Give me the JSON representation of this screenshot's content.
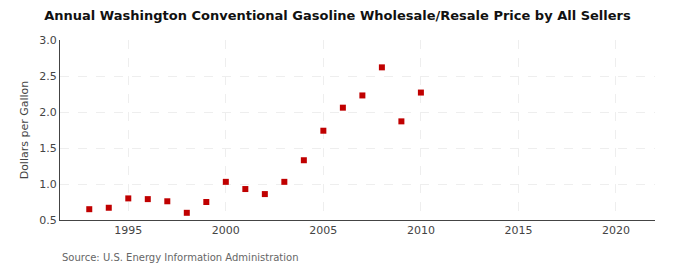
{
  "chart_data": {
    "type": "scatter",
    "title": "Annual Washington Conventional Gasoline Wholesale/Resale Price by All Sellers",
    "ylabel": "Dollars per Gallon",
    "annotations": [
      "Source: U.S. Energy Information Administration"
    ],
    "x": [
      1993,
      1994,
      1995,
      1996,
      1997,
      1998,
      1999,
      2000,
      2001,
      2002,
      2003,
      2004,
      2005,
      2006,
      2007,
      2008,
      2009,
      2010
    ],
    "values": [
      0.65,
      0.67,
      0.8,
      0.79,
      0.76,
      0.6,
      0.75,
      1.03,
      0.93,
      0.86,
      1.03,
      1.33,
      1.74,
      2.06,
      2.23,
      2.62,
      1.87,
      2.27
    ],
    "color": "#c00000",
    "marker": "square",
    "xlim": [
      1991.5,
      2022
    ],
    "xticks": [
      1995,
      2000,
      2005,
      2010,
      2015,
      2020
    ],
    "ylim": [
      0.5,
      3.0
    ],
    "yticks": [
      0.5,
      {
        "value": 1.0,
        "label": "1.0"
      },
      1.5,
      {
        "value": 2.0,
        "label": "2.0"
      },
      2.5,
      {
        "value": 3.0,
        "label": "3.0"
      }
    ],
    "grid": true
  }
}
